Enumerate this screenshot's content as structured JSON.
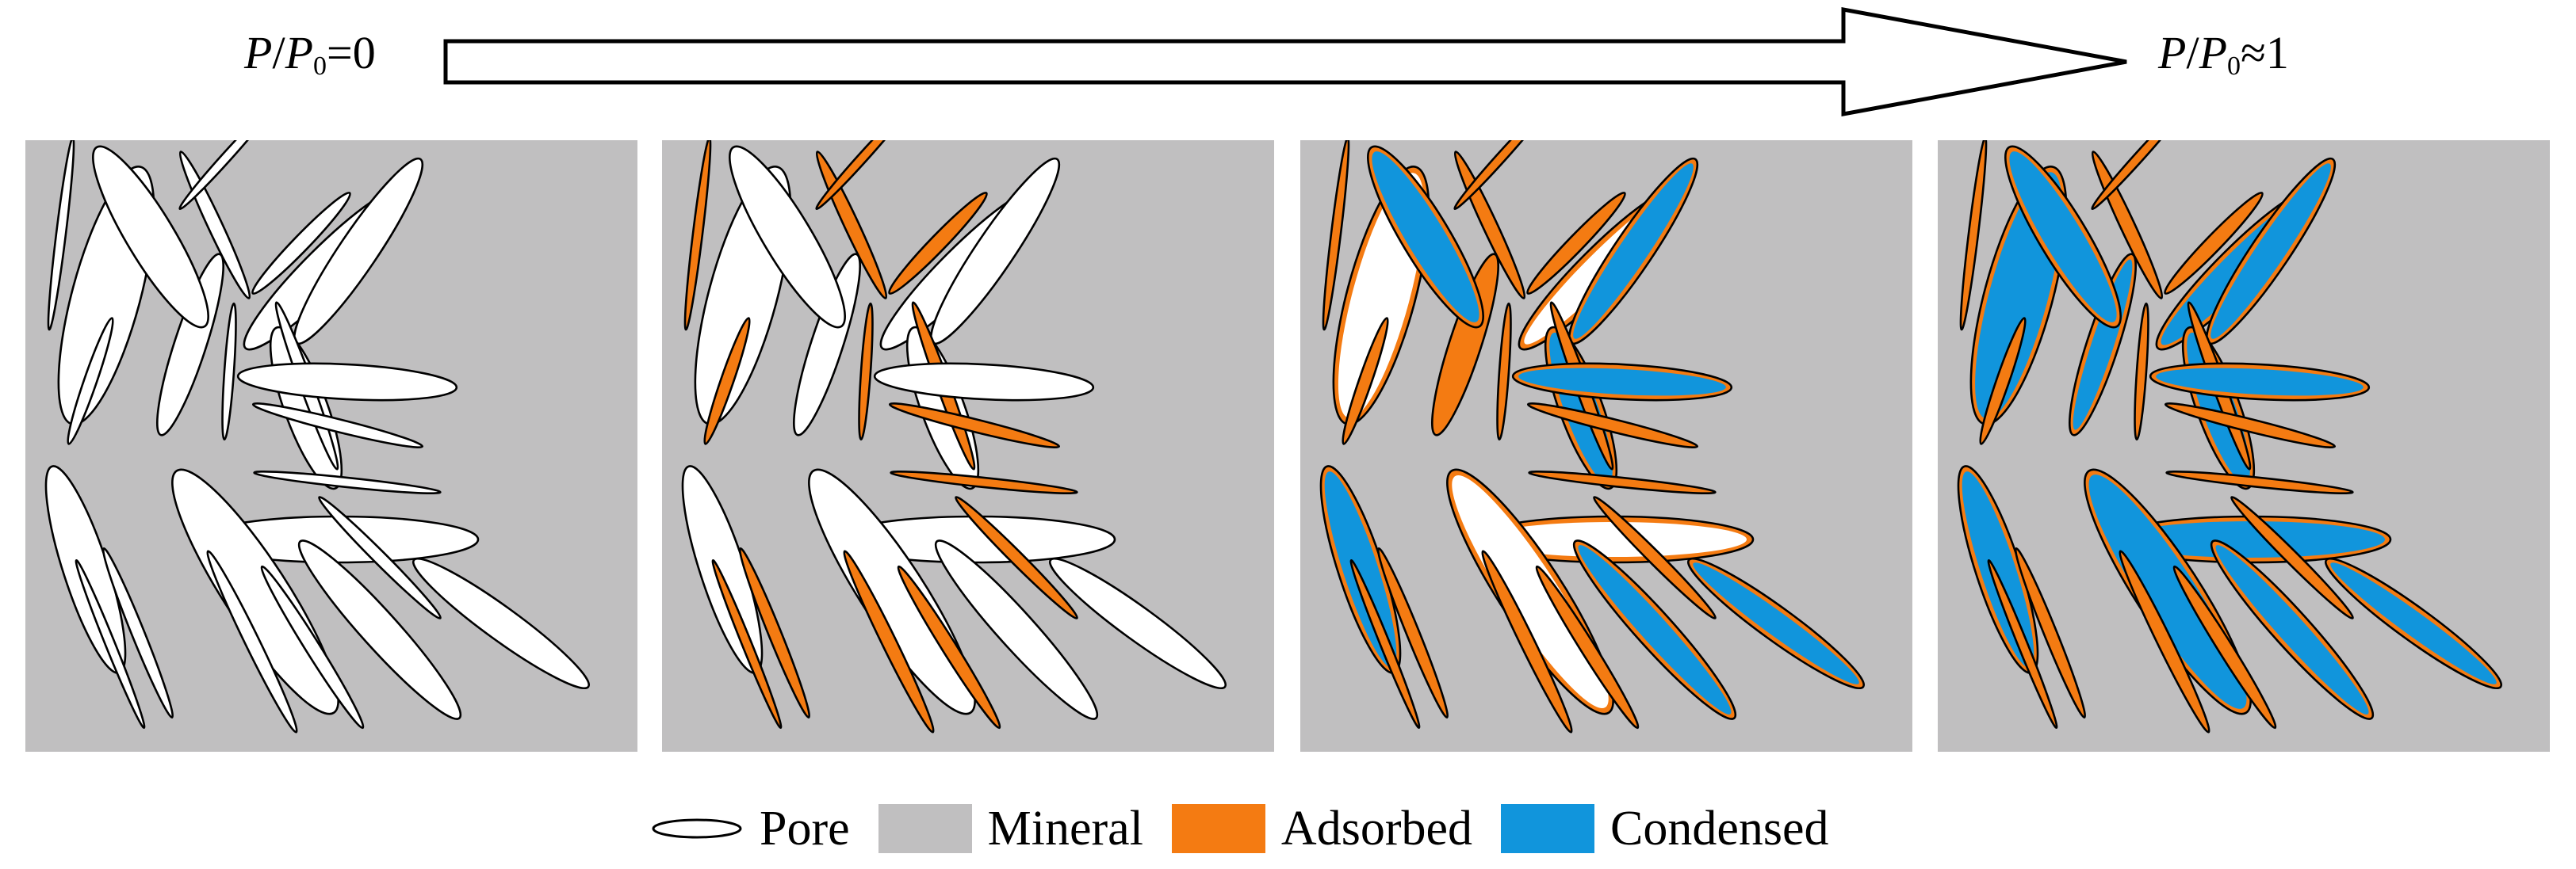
{
  "header": {
    "start": {
      "var": "P",
      "sep": "/",
      "ref": "P",
      "ref_sub": "0",
      "rel": "=",
      "value": "0"
    },
    "end": {
      "var": "P",
      "sep": "/",
      "ref": "P",
      "ref_sub": "0",
      "rel": "≈",
      "value": "1"
    }
  },
  "legend": {
    "pore_label": "Pore",
    "mineral_label": "Mineral",
    "adsorbed_label": "Adsorbed",
    "condensed_label": "Condensed"
  },
  "colors": {
    "mineral": "#c0bfc0",
    "pore": "#ffffff",
    "adsorbed": "#f47b12",
    "condensed": "#1195dc",
    "outline": "#000000"
  },
  "panels": [
    {
      "stage": "dry",
      "icon": "pores-empty-panel"
    },
    {
      "stage": "adsorption",
      "icon": "narrow-pores-filled-adsorbed-panel"
    },
    {
      "stage": "partial-condensation",
      "icon": "medium-pores-condensed-panel"
    },
    {
      "stage": "full-condensation",
      "icon": "all-pores-condensed-panel"
    }
  ]
}
